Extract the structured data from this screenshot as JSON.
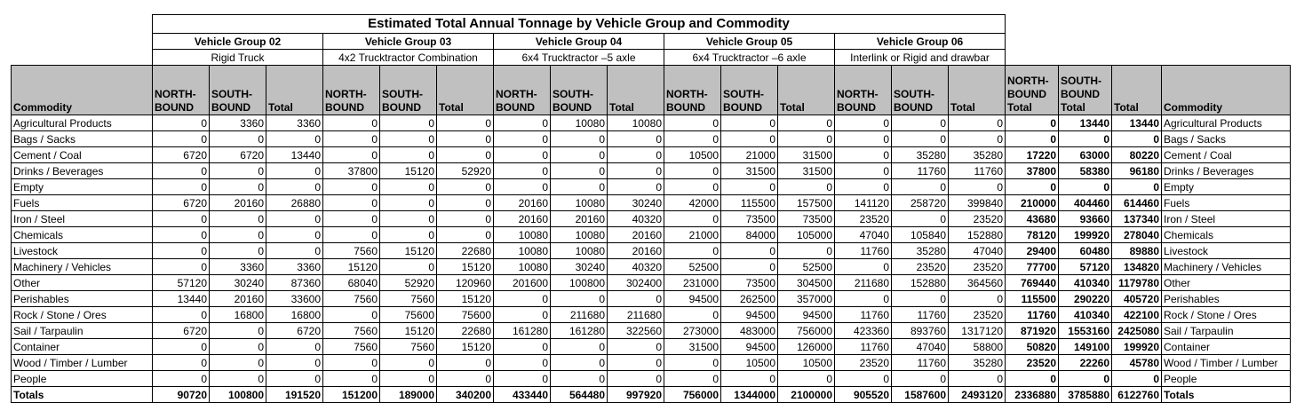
{
  "title": "Estimated Total Annual Tonnage by Vehicle Group and Commodity",
  "vehicle_groups": [
    {
      "name": "Vehicle Group 02",
      "desc": "Rigid Truck"
    },
    {
      "name": "Vehicle Group 03",
      "desc": "4x2 Trucktractor Combination"
    },
    {
      "name": "Vehicle Group 04",
      "desc": "6x4 Trucktractor –5 axle"
    },
    {
      "name": "Vehicle Group 05",
      "desc": "6x4 Trucktractor –6 axle"
    },
    {
      "name": "Vehicle Group 06",
      "desc": "Interlink or Rigid and drawbar"
    }
  ],
  "headers": {
    "commodity": "Commodity",
    "north": "NORTH-BOUND",
    "south": "SOUTH-BOUND",
    "total": "Total",
    "north_total": "NORTH-BOUND Total",
    "south_total": "SOUTH-BOUND Total",
    "grand_total": "Total",
    "commodity_right": "Commodity"
  },
  "rows": [
    {
      "commodity": "Agricultural Products",
      "values": [
        "0",
        "3360",
        "3360",
        "0",
        "0",
        "0",
        "0",
        "10080",
        "10080",
        "0",
        "0",
        "0",
        "0",
        "0",
        "0",
        "0",
        "13440",
        "13440"
      ]
    },
    {
      "commodity": "Bags / Sacks",
      "values": [
        "0",
        "0",
        "0",
        "0",
        "0",
        "0",
        "0",
        "0",
        "0",
        "0",
        "0",
        "0",
        "0",
        "0",
        "0",
        "0",
        "0",
        "0"
      ]
    },
    {
      "commodity": "Cement / Coal",
      "values": [
        "6720",
        "6720",
        "13440",
        "0",
        "0",
        "0",
        "0",
        "0",
        "0",
        "10500",
        "21000",
        "31500",
        "0",
        "35280",
        "35280",
        "17220",
        "63000",
        "80220"
      ]
    },
    {
      "commodity": "Drinks / Beverages",
      "values": [
        "0",
        "0",
        "0",
        "37800",
        "15120",
        "52920",
        "0",
        "0",
        "0",
        "0",
        "31500",
        "31500",
        "0",
        "11760",
        "11760",
        "37800",
        "58380",
        "96180"
      ]
    },
    {
      "commodity": "Empty",
      "values": [
        "0",
        "0",
        "0",
        "0",
        "0",
        "0",
        "0",
        "0",
        "0",
        "0",
        "0",
        "0",
        "0",
        "0",
        "0",
        "0",
        "0",
        "0"
      ]
    },
    {
      "commodity": "Fuels",
      "values": [
        "6720",
        "20160",
        "26880",
        "0",
        "0",
        "0",
        "20160",
        "10080",
        "30240",
        "42000",
        "115500",
        "157500",
        "141120",
        "258720",
        "399840",
        "210000",
        "404460",
        "614460"
      ]
    },
    {
      "commodity": "Iron / Steel",
      "values": [
        "0",
        "0",
        "0",
        "0",
        "0",
        "0",
        "20160",
        "20160",
        "40320",
        "0",
        "73500",
        "73500",
        "23520",
        "0",
        "23520",
        "43680",
        "93660",
        "137340"
      ]
    },
    {
      "commodity": "Chemicals",
      "values": [
        "0",
        "0",
        "0",
        "0",
        "0",
        "0",
        "10080",
        "10080",
        "20160",
        "21000",
        "84000",
        "105000",
        "47040",
        "105840",
        "152880",
        "78120",
        "199920",
        "278040"
      ]
    },
    {
      "commodity": "Livestock",
      "values": [
        "0",
        "0",
        "0",
        "7560",
        "15120",
        "22680",
        "10080",
        "10080",
        "20160",
        "0",
        "0",
        "0",
        "11760",
        "35280",
        "47040",
        "29400",
        "60480",
        "89880"
      ]
    },
    {
      "commodity": "Machinery / Vehicles",
      "values": [
        "0",
        "3360",
        "3360",
        "15120",
        "0",
        "15120",
        "10080",
        "30240",
        "40320",
        "52500",
        "0",
        "52500",
        "0",
        "23520",
        "23520",
        "77700",
        "57120",
        "134820"
      ]
    },
    {
      "commodity": "Other",
      "values": [
        "57120",
        "30240",
        "87360",
        "68040",
        "52920",
        "120960",
        "201600",
        "100800",
        "302400",
        "231000",
        "73500",
        "304500",
        "211680",
        "152880",
        "364560",
        "769440",
        "410340",
        "1179780"
      ]
    },
    {
      "commodity": "Perishables",
      "values": [
        "13440",
        "20160",
        "33600",
        "7560",
        "7560",
        "15120",
        "0",
        "0",
        "0",
        "94500",
        "262500",
        "357000",
        "0",
        "0",
        "0",
        "115500",
        "290220",
        "405720"
      ]
    },
    {
      "commodity": "Rock / Stone / Ores",
      "values": [
        "0",
        "16800",
        "16800",
        "0",
        "75600",
        "75600",
        "0",
        "211680",
        "211680",
        "0",
        "94500",
        "94500",
        "11760",
        "11760",
        "23520",
        "11760",
        "410340",
        "422100"
      ]
    },
    {
      "commodity": "Sail / Tarpaulin",
      "values": [
        "6720",
        "0",
        "6720",
        "7560",
        "15120",
        "22680",
        "161280",
        "161280",
        "322560",
        "273000",
        "483000",
        "756000",
        "423360",
        "893760",
        "1317120",
        "871920",
        "1553160",
        "2425080"
      ]
    },
    {
      "commodity": "Container",
      "values": [
        "0",
        "0",
        "0",
        "7560",
        "7560",
        "15120",
        "0",
        "0",
        "0",
        "31500",
        "94500",
        "126000",
        "11760",
        "47040",
        "58800",
        "50820",
        "149100",
        "199920"
      ]
    },
    {
      "commodity": "Wood / Timber / Lumber",
      "values": [
        "0",
        "0",
        "0",
        "0",
        "0",
        "0",
        "0",
        "0",
        "0",
        "0",
        "10500",
        "10500",
        "23520",
        "11760",
        "35280",
        "23520",
        "22260",
        "45780"
      ]
    },
    {
      "commodity": "People",
      "values": [
        "0",
        "0",
        "0",
        "0",
        "0",
        "0",
        "0",
        "0",
        "0",
        "0",
        "0",
        "0",
        "0",
        "0",
        "0",
        "0",
        "0",
        "0"
      ]
    }
  ],
  "totals": {
    "label": "Totals",
    "values": [
      "90720",
      "100800",
      "191520",
      "151200",
      "189000",
      "340200",
      "433440",
      "564480",
      "997920",
      "756000",
      "1344000",
      "2100000",
      "905520",
      "1587600",
      "2493120",
      "2336880",
      "3785880",
      "6122760"
    ],
    "label_right": "Totals"
  }
}
